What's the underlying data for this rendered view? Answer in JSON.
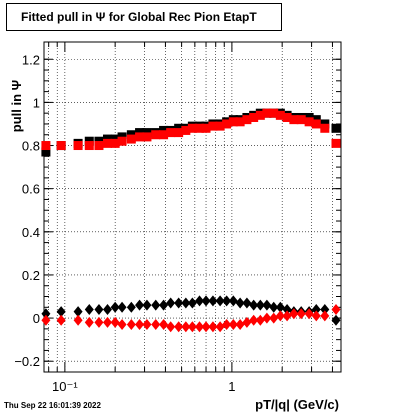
{
  "chart_data": {
    "type": "scatter",
    "title": "Fitted pull in  Ψ  for Global Rec Pion EtapT",
    "xlabel": "pT/|q| (GeV/c)",
    "ylabel": "pull in Ψ",
    "x_scale": "log",
    "xlim": [
      0.075,
      4.5
    ],
    "ylim": [
      -0.25,
      1.28
    ],
    "grid": true,
    "x_tick_labels": [
      "10⁻¹",
      "1"
    ],
    "y_tick_labels": [
      "−0.2",
      "0",
      "0.2",
      "0.4",
      "0.6",
      "0.8",
      "1",
      "1.2"
    ],
    "x_ticks": [
      0.1,
      1
    ],
    "y_ticks": [
      -0.2,
      0,
      0.2,
      0.4,
      0.6,
      0.8,
      1.0,
      1.2
    ],
    "x": [
      0.077,
      0.095,
      0.12,
      0.14,
      0.16,
      0.18,
      0.2,
      0.22,
      0.25,
      0.28,
      0.31,
      0.35,
      0.39,
      0.43,
      0.48,
      0.53,
      0.58,
      0.64,
      0.7,
      0.77,
      0.85,
      0.93,
      1.02,
      1.12,
      1.23,
      1.35,
      1.48,
      1.62,
      1.78,
      1.95,
      2.14,
      2.35,
      2.6,
      2.9,
      3.2,
      3.6,
      4.2
    ],
    "series": [
      {
        "color": "#000000",
        "marker": "square",
        "values": [
          0.77,
          0.8,
          0.81,
          0.82,
          0.82,
          0.83,
          0.83,
          0.84,
          0.85,
          0.86,
          0.86,
          0.86,
          0.87,
          0.87,
          0.88,
          0.88,
          0.89,
          0.89,
          0.89,
          0.9,
          0.9,
          0.91,
          0.92,
          0.92,
          0.93,
          0.94,
          0.95,
          0.95,
          0.95,
          0.95,
          0.94,
          0.93,
          0.93,
          0.93,
          0.92,
          0.9,
          0.88
        ]
      },
      {
        "color": "#ff0000",
        "marker": "square",
        "values": [
          0.8,
          0.8,
          0.8,
          0.8,
          0.8,
          0.81,
          0.81,
          0.82,
          0.83,
          0.84,
          0.84,
          0.85,
          0.85,
          0.86,
          0.86,
          0.87,
          0.88,
          0.88,
          0.88,
          0.89,
          0.89,
          0.9,
          0.91,
          0.91,
          0.92,
          0.93,
          0.94,
          0.95,
          0.95,
          0.94,
          0.93,
          0.92,
          0.92,
          0.91,
          0.9,
          0.88,
          0.81
        ]
      },
      {
        "color": "#000000",
        "marker": "diamond",
        "values": [
          0.02,
          0.03,
          0.03,
          0.04,
          0.04,
          0.04,
          0.05,
          0.05,
          0.05,
          0.06,
          0.06,
          0.06,
          0.06,
          0.07,
          0.07,
          0.07,
          0.07,
          0.08,
          0.08,
          0.08,
          0.08,
          0.08,
          0.08,
          0.07,
          0.07,
          0.06,
          0.06,
          0.06,
          0.05,
          0.05,
          0.04,
          0.03,
          0.03,
          0.03,
          0.04,
          0.04,
          -0.01
        ]
      },
      {
        "color": "#ff0000",
        "marker": "diamond",
        "values": [
          -0.01,
          -0.01,
          -0.01,
          -0.02,
          -0.02,
          -0.02,
          -0.02,
          -0.03,
          -0.03,
          -0.03,
          -0.03,
          -0.03,
          -0.03,
          -0.04,
          -0.04,
          -0.04,
          -0.04,
          -0.04,
          -0.04,
          -0.04,
          -0.04,
          -0.03,
          -0.03,
          -0.03,
          -0.02,
          -0.01,
          -0.01,
          0.0,
          0.0,
          0.01,
          0.01,
          0.02,
          0.02,
          0.02,
          0.01,
          0.01,
          0.04
        ]
      }
    ]
  },
  "timestamp": "Thu Sep 22 16:01:39 2022"
}
